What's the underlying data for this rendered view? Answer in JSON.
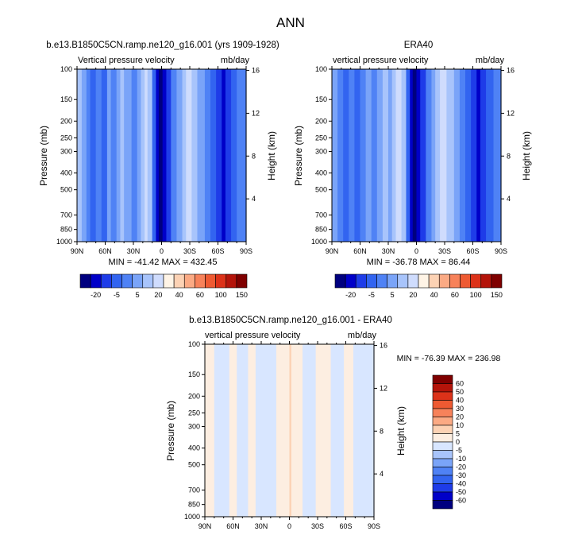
{
  "figure": {
    "title": "ANN"
  },
  "colors": {
    "ramp": [
      "#00007f",
      "#0000c8",
      "#1e3ce8",
      "#3264f0",
      "#4f82f5",
      "#7aa4f8",
      "#a8c4fb",
      "#cfdcfd",
      "#fff4e6",
      "#fcd2b4",
      "#fbaa84",
      "#f7825a",
      "#ee5a32",
      "#dc3219",
      "#b4140a",
      "#7f0000"
    ],
    "diff_ramp": [
      "#00007f",
      "#0000c8",
      "#1e3ce8",
      "#3264f0",
      "#4f82f5",
      "#7aa4f8",
      "#a8c4fb",
      "#d8e6ff",
      "#fdeee1",
      "#fcd2b4",
      "#fbaa84",
      "#f7825a",
      "#ee5a32",
      "#dc3219",
      "#b4140a",
      "#7f0000"
    ]
  },
  "chart_data": [
    {
      "type": "heatmap",
      "id": "model",
      "title": "b.e13.B1850C5CN.ramp.ne120_g16.001 (yrs 1909-1928)",
      "left_label": "Vertical pressure velocity",
      "right_label": "mb/day",
      "ylabel": "Pressure (mb)",
      "ylabel2": "Height (km)",
      "x_ticks": [
        "90N",
        "60N",
        "30N",
        "0",
        "30S",
        "60S",
        "90S"
      ],
      "y_ticks": [
        100,
        150,
        200,
        250,
        300,
        400,
        500,
        700,
        850,
        1000
      ],
      "y2_ticks": [
        16,
        12,
        8,
        4
      ],
      "stats": "MIN = -41.42  MAX = 432.45",
      "colorbar_labels": [
        "-20",
        "-5",
        "5",
        "20",
        "40",
        "60",
        "100",
        "150"
      ],
      "bands": [
        {
          "lat": 90,
          "l": 6
        },
        {
          "lat": 85,
          "l": 5
        },
        {
          "lat": 80,
          "l": 4
        },
        {
          "lat": 76,
          "l": 3
        },
        {
          "lat": 70,
          "l": 4
        },
        {
          "lat": 64,
          "l": 3
        },
        {
          "lat": 58,
          "l": 5
        },
        {
          "lat": 54,
          "l": 4
        },
        {
          "lat": 48,
          "l": 5
        },
        {
          "lat": 44,
          "l": 6
        },
        {
          "lat": 40,
          "l": 5
        },
        {
          "lat": 32,
          "l": 4
        },
        {
          "lat": 26,
          "l": 5
        },
        {
          "lat": 22,
          "l": 6
        },
        {
          "lat": 18,
          "l": 7
        },
        {
          "lat": 15,
          "l": 6
        },
        {
          "lat": 10,
          "l": 3
        },
        {
          "lat": 6,
          "l": 1
        },
        {
          "lat": 3,
          "l": 0
        },
        {
          "lat": -1,
          "l": 1
        },
        {
          "lat": -5,
          "l": 2
        },
        {
          "lat": -10,
          "l": 4
        },
        {
          "lat": -16,
          "l": 5
        },
        {
          "lat": -22,
          "l": 6
        },
        {
          "lat": -26,
          "l": 7
        },
        {
          "lat": -32,
          "l": 6
        },
        {
          "lat": -38,
          "l": 5
        },
        {
          "lat": -46,
          "l": 4
        },
        {
          "lat": -52,
          "l": 3
        },
        {
          "lat": -58,
          "l": 2
        },
        {
          "lat": -64,
          "l": 1
        },
        {
          "lat": -68,
          "l": 2
        },
        {
          "lat": -74,
          "l": 3
        },
        {
          "lat": -80,
          "l": 4
        },
        {
          "lat": -90,
          "l": 4
        }
      ]
    },
    {
      "type": "heatmap",
      "id": "era40",
      "title": "ERA40",
      "left_label": "vertical pressure velocity",
      "right_label": "mb/day",
      "ylabel": "Pressure (mb)",
      "ylabel2": "Height (km)",
      "x_ticks": [
        "90N",
        "60N",
        "30N",
        "0",
        "30S",
        "60S",
        "90S"
      ],
      "y_ticks": [
        100,
        150,
        200,
        250,
        300,
        400,
        500,
        700,
        850,
        1000
      ],
      "y2_ticks": [
        16,
        12,
        8,
        4
      ],
      "stats": "MIN = -36.78  MAX =  86.44",
      "colorbar_labels": [
        "-20",
        "-5",
        "5",
        "20",
        "40",
        "60",
        "100",
        "150"
      ],
      "bands": [
        {
          "lat": 90,
          "l": 5
        },
        {
          "lat": 84,
          "l": 4
        },
        {
          "lat": 78,
          "l": 3
        },
        {
          "lat": 72,
          "l": 4
        },
        {
          "lat": 66,
          "l": 3
        },
        {
          "lat": 60,
          "l": 4
        },
        {
          "lat": 54,
          "l": 5
        },
        {
          "lat": 48,
          "l": 4
        },
        {
          "lat": 42,
          "l": 5
        },
        {
          "lat": 36,
          "l": 6
        },
        {
          "lat": 30,
          "l": 5
        },
        {
          "lat": 26,
          "l": 6
        },
        {
          "lat": 22,
          "l": 7
        },
        {
          "lat": 16,
          "l": 6
        },
        {
          "lat": 11,
          "l": 3
        },
        {
          "lat": 7,
          "l": 1
        },
        {
          "lat": 4,
          "l": 0
        },
        {
          "lat": 0,
          "l": 1
        },
        {
          "lat": -4,
          "l": 2
        },
        {
          "lat": -10,
          "l": 4
        },
        {
          "lat": -16,
          "l": 5
        },
        {
          "lat": -20,
          "l": 6
        },
        {
          "lat": -25,
          "l": 7
        },
        {
          "lat": -32,
          "l": 6
        },
        {
          "lat": -40,
          "l": 5
        },
        {
          "lat": -46,
          "l": 4
        },
        {
          "lat": -52,
          "l": 3
        },
        {
          "lat": -58,
          "l": 2
        },
        {
          "lat": -64,
          "l": 1
        },
        {
          "lat": -68,
          "l": 2
        },
        {
          "lat": -74,
          "l": 3
        },
        {
          "lat": -82,
          "l": 4
        },
        {
          "lat": -90,
          "l": 4
        }
      ]
    },
    {
      "type": "heatmap",
      "id": "diff",
      "title": "b.e13.B1850C5CN.ramp.ne120_g16.001 - ERA40",
      "left_label": "vertical pressure velocity",
      "right_label": "mb/day",
      "ylabel": "Pressure (mb)",
      "ylabel2": "Height (km)",
      "x_ticks": [
        "90N",
        "60N",
        "30N",
        "0",
        "30S",
        "60S",
        "90S"
      ],
      "y_ticks": [
        100,
        150,
        200,
        250,
        300,
        400,
        500,
        700,
        850,
        1000
      ],
      "y2_ticks": [
        16,
        12,
        8,
        4
      ],
      "stats": "MIN = -76.39  MAX = 236.98",
      "colorbar_labels": [
        "60",
        "50",
        "40",
        "30",
        "20",
        "10",
        "5",
        "0",
        "-5",
        "-10",
        "-20",
        "-30",
        "-40",
        "-50",
        "-60"
      ],
      "bands": [
        {
          "lat": 90,
          "l": 8
        },
        {
          "lat": 80,
          "l": 7
        },
        {
          "lat": 64,
          "l": 8
        },
        {
          "lat": 56,
          "l": 7
        },
        {
          "lat": 44,
          "l": 8
        },
        {
          "lat": 36,
          "l": 7
        },
        {
          "lat": 14,
          "l": 8
        },
        {
          "lat": 0,
          "l": 9
        },
        {
          "lat": -2,
          "l": 8
        },
        {
          "lat": -14,
          "l": 7
        },
        {
          "lat": -28,
          "l": 8
        },
        {
          "lat": -44,
          "l": 7
        },
        {
          "lat": -58,
          "l": 8
        },
        {
          "lat": -68,
          "l": 7
        },
        {
          "lat": -90,
          "l": 7
        }
      ]
    }
  ]
}
